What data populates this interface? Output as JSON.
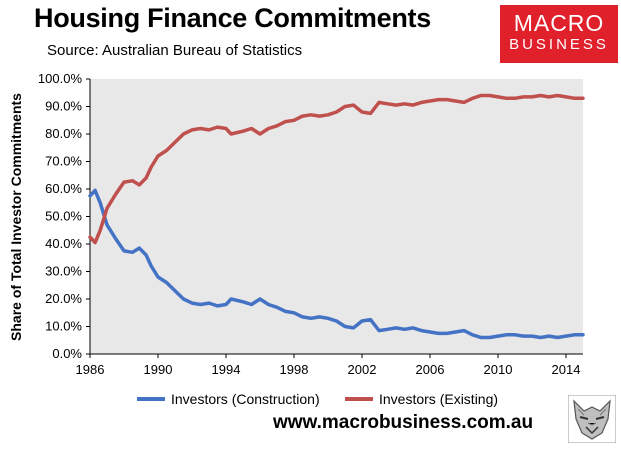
{
  "header": {
    "title": "Housing Finance Commitments",
    "source": "Source: Australian Bureau of Statistics"
  },
  "logo": {
    "line1": "MACRO",
    "line2": "BUSINESS"
  },
  "footer": {
    "url": "www.macrobusiness.com.au"
  },
  "colors": {
    "construction": "#4472c4",
    "existing": "#c0504d",
    "plot_bg": "#e8e8e8",
    "badge": "#e0202b"
  },
  "chart_data": {
    "type": "line",
    "title": "Housing Finance Commitments",
    "xlabel": "",
    "ylabel": "Share of Total Investor Commitments",
    "xlim": [
      1986,
      2015
    ],
    "ylim": [
      0,
      100
    ],
    "x_ticks": [
      "1986",
      "1990",
      "1994",
      "1998",
      "2002",
      "2006",
      "2010",
      "2014"
    ],
    "y_ticks": [
      "0.0%",
      "10.0%",
      "20.0%",
      "30.0%",
      "40.0%",
      "50.0%",
      "60.0%",
      "70.0%",
      "80.0%",
      "90.0%",
      "100.0%"
    ],
    "grid": false,
    "legend_position": "bottom",
    "series": [
      {
        "name": "Investors (Construction)",
        "x": [
          1986.0,
          1986.3,
          1986.6,
          1987.0,
          1987.5,
          1988.0,
          1988.5,
          1988.9,
          1989.3,
          1989.6,
          1990.0,
          1990.5,
          1991.0,
          1991.5,
          1992.0,
          1992.5,
          1993.0,
          1993.5,
          1994.0,
          1994.3,
          1995.0,
          1995.5,
          1996.0,
          1996.5,
          1997.0,
          1997.5,
          1998.0,
          1998.5,
          1999.0,
          1999.5,
          2000.0,
          2000.5,
          2001.0,
          2001.5,
          2002.0,
          2002.5,
          2003.0,
          2003.5,
          2004.0,
          2004.5,
          2005.0,
          2005.5,
          2006.0,
          2006.5,
          2007.0,
          2007.5,
          2008.0,
          2008.5,
          2009.0,
          2009.5,
          2010.0,
          2010.5,
          2011.0,
          2011.5,
          2012.0,
          2012.5,
          2013.0,
          2013.5,
          2014.0,
          2014.5,
          2015.0
        ],
        "values": [
          57.5,
          59.5,
          55,
          47,
          42,
          37.5,
          37,
          38.5,
          36,
          32,
          28,
          26,
          23,
          20,
          18.5,
          18,
          18.5,
          17.5,
          18,
          20,
          19,
          18,
          20,
          18,
          17,
          15.5,
          15,
          13.5,
          13,
          13.5,
          13,
          12,
          10,
          9.5,
          12,
          12.5,
          8.5,
          9,
          9.5,
          9,
          9.5,
          8.5,
          8,
          7.5,
          7.5,
          8,
          8.5,
          7,
          6,
          6,
          6.5,
          7,
          7,
          6.5,
          6.5,
          6,
          6.5,
          6,
          6.5,
          7,
          7
        ]
      },
      {
        "name": "Investors (Existing)",
        "x": [
          1986.0,
          1986.3,
          1986.6,
          1987.0,
          1987.5,
          1988.0,
          1988.5,
          1988.9,
          1989.3,
          1989.6,
          1990.0,
          1990.5,
          1991.0,
          1991.5,
          1992.0,
          1992.5,
          1993.0,
          1993.5,
          1994.0,
          1994.3,
          1995.0,
          1995.5,
          1996.0,
          1996.5,
          1997.0,
          1997.5,
          1998.0,
          1998.5,
          1999.0,
          1999.5,
          2000.0,
          2000.5,
          2001.0,
          2001.5,
          2002.0,
          2002.5,
          2003.0,
          2003.5,
          2004.0,
          2004.5,
          2005.0,
          2005.5,
          2006.0,
          2006.5,
          2007.0,
          2007.5,
          2008.0,
          2008.5,
          2009.0,
          2009.5,
          2010.0,
          2010.5,
          2011.0,
          2011.5,
          2012.0,
          2012.5,
          2013.0,
          2013.5,
          2014.0,
          2014.5,
          2015.0
        ],
        "values": [
          42.5,
          40.5,
          45,
          53,
          58,
          62.5,
          63,
          61.5,
          64,
          68,
          72,
          74,
          77,
          80,
          81.5,
          82,
          81.5,
          82.5,
          82,
          80,
          81,
          82,
          80,
          82,
          83,
          84.5,
          85,
          86.5,
          87,
          86.5,
          87,
          88,
          90,
          90.5,
          88,
          87.5,
          91.5,
          91,
          90.5,
          91,
          90.5,
          91.5,
          92,
          92.5,
          92.5,
          92,
          91.5,
          93,
          94,
          94,
          93.5,
          93,
          93,
          93.5,
          93.5,
          94,
          93.5,
          94,
          93.5,
          93,
          93
        ]
      }
    ]
  }
}
